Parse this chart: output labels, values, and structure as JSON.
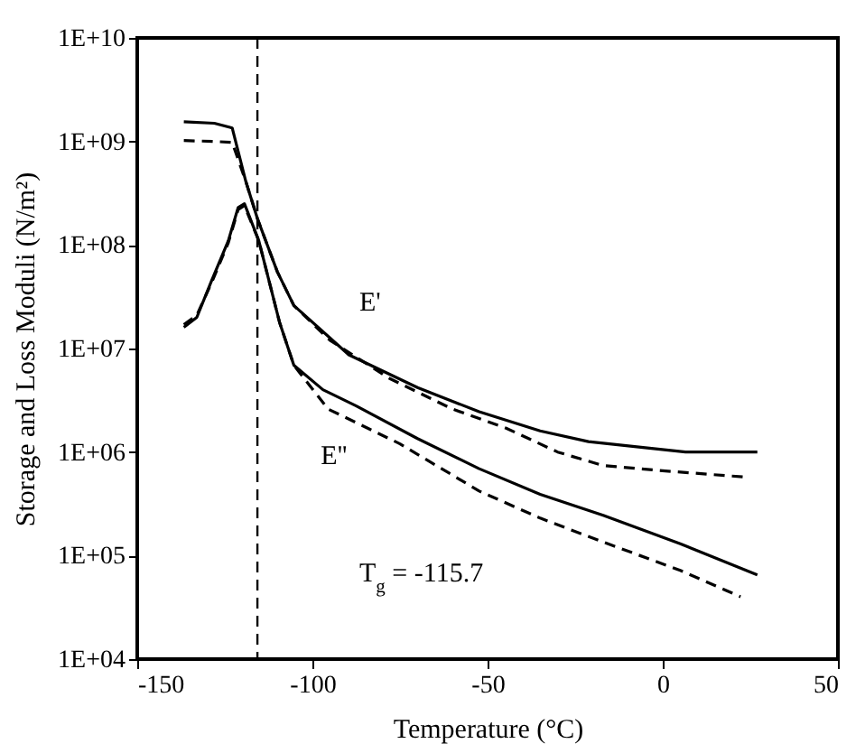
{
  "chart_data": {
    "type": "line",
    "xlabel": "Temperature (°C)",
    "ylabel": "Storage and Loss Moduli  (N/m²)",
    "xlim": [
      -150,
      50
    ],
    "xticks": [
      -150,
      -100,
      -50,
      0,
      50
    ],
    "ylim": [
      10000,
      10000000000
    ],
    "log": "y",
    "yticks": [
      {
        "value": 10000,
        "label": "1E+04"
      },
      {
        "value": 100000,
        "label": "1E+05"
      },
      {
        "value": 1000000,
        "label": "1E+06"
      },
      {
        "value": 10000000,
        "label": "1E+07"
      },
      {
        "value": 100000000,
        "label": "1E+08"
      },
      {
        "value": 1000000000,
        "label": "1E+09"
      },
      {
        "value": 10000000000,
        "label": "1E+10"
      }
    ],
    "grid": false,
    "marker": "none",
    "series": [
      {
        "color": "#000000",
        "line_style": "solid",
        "x": [
          -136.7,
          -128,
          -122.9,
          -119,
          -115.7,
          -110,
          -105.3,
          -89.6,
          -70,
          -52.4,
          -35,
          -21.2,
          -5,
          6.5,
          27
        ],
        "values": [
          1550000000,
          1500000000,
          1350000000,
          410000000,
          180000000,
          55000000,
          26000000,
          8700000,
          4200000,
          2450000,
          1600000,
          1260000,
          1100000,
          1000000,
          1000000
        ]
      },
      {
        "color": "#000000",
        "line_style": "dashed",
        "x": [
          -136.7,
          -128,
          -122.9,
          -119,
          -115.7,
          -110,
          -105.3,
          -95,
          -77.8,
          -60,
          -44.7,
          -30,
          -17,
          2.4,
          23
        ],
        "values": [
          1020000000,
          1000000000,
          980000000,
          410000000,
          180000000,
          55000000,
          26000000,
          12000000,
          5100000,
          2600000,
          1700000,
          1000000,
          740000,
          650000,
          575000
        ]
      },
      {
        "color": "#000000",
        "line_style": "solid",
        "x": [
          -136.7,
          -133,
          -128.8,
          -124,
          -121.2,
          -119.4,
          -115.3,
          -112,
          -109.4,
          -105.3,
          -97,
          -87.6,
          -70,
          -52.4,
          -35,
          -17,
          5,
          27
        ],
        "values": [
          16000000,
          20000000,
          45000000,
          110000000,
          230000000,
          250000000,
          110000000,
          40000000,
          18000000,
          6900000,
          4000000,
          2800000,
          1350000,
          690000,
          390000,
          245000,
          130000,
          65000
        ]
      },
      {
        "color": "#000000",
        "line_style": "dashed",
        "x": [
          -136.7,
          -133,
          -128.8,
          -124,
          -121.2,
          -119.4,
          -115.3,
          -112,
          -109.4,
          -105.3,
          -95.5,
          -75,
          -52.4,
          -35,
          -17,
          5,
          22.2
        ],
        "values": [
          17000000,
          21000000,
          43000000,
          105000000,
          220000000,
          240000000,
          110000000,
          40000000,
          18000000,
          6900000,
          2600000,
          1200000,
          420000,
          230000,
          135000,
          72000,
          40000
        ]
      }
    ],
    "ref_lines": [
      {
        "axis": "x",
        "value": -115.7,
        "line_style": "dashed",
        "color": "#000000"
      }
    ],
    "annotations": [
      "E'",
      "E''",
      "T$_{g}$ = -115.7"
    ]
  }
}
